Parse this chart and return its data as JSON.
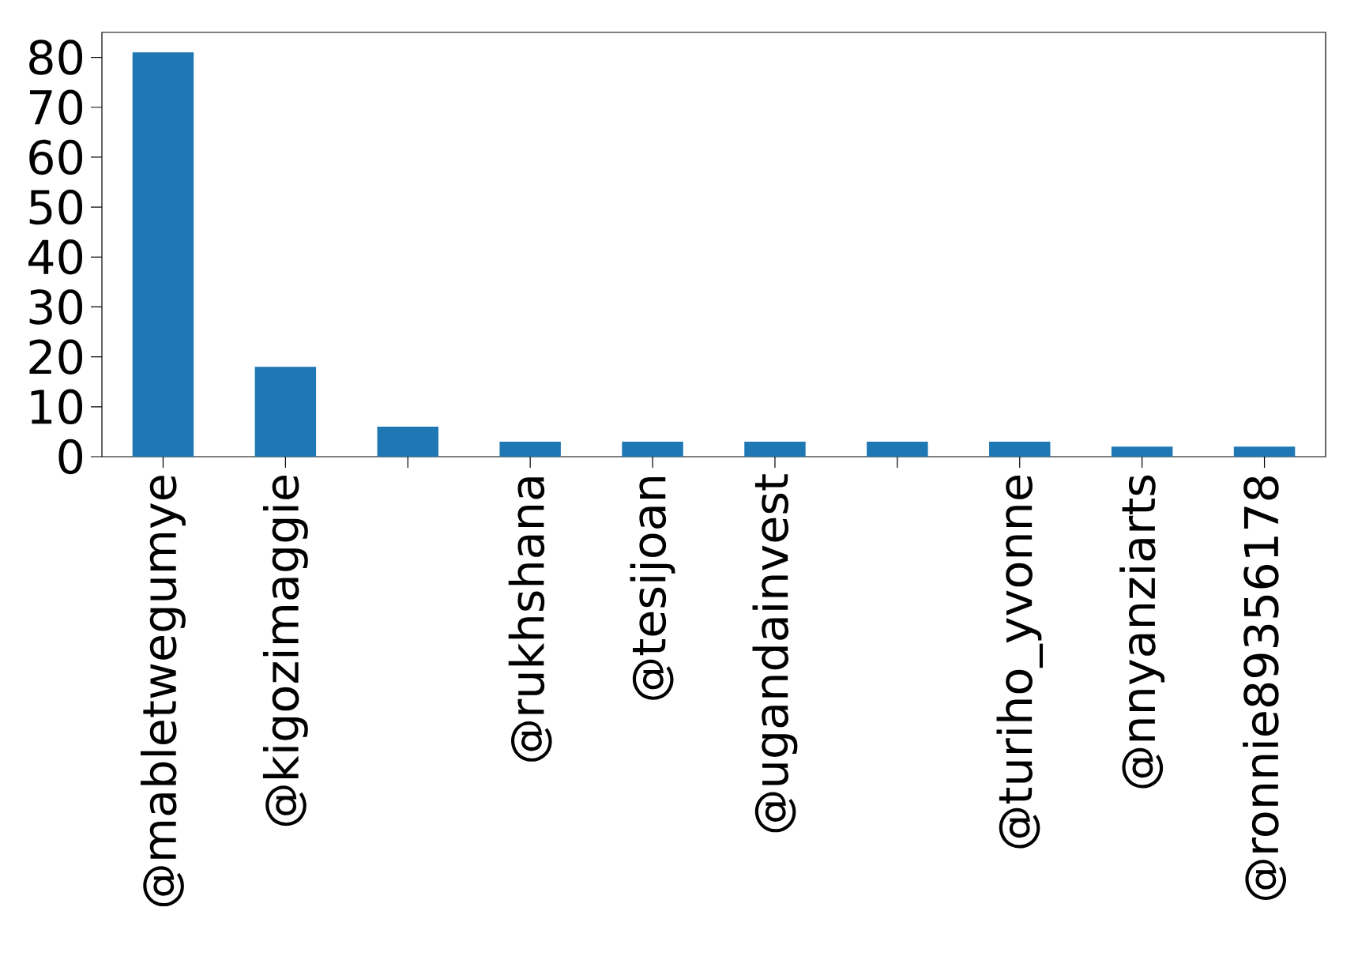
{
  "chart_data": {
    "type": "bar",
    "categories": [
      "@mabletwegumye",
      "@kigozimaggie",
      null,
      "@rukhshana",
      "@tesijoan",
      "@ugandainvest",
      null,
      "@turiho_yvonne",
      "@nnyanziarts",
      "@ronnie89356178"
    ],
    "values": [
      81,
      18,
      6,
      3,
      3,
      3,
      3,
      3,
      2,
      2
    ],
    "color": "#1f77b4",
    "ylim": [
      0,
      85
    ],
    "yticks": [
      0,
      10,
      20,
      30,
      40,
      50,
      60,
      70,
      80
    ]
  }
}
